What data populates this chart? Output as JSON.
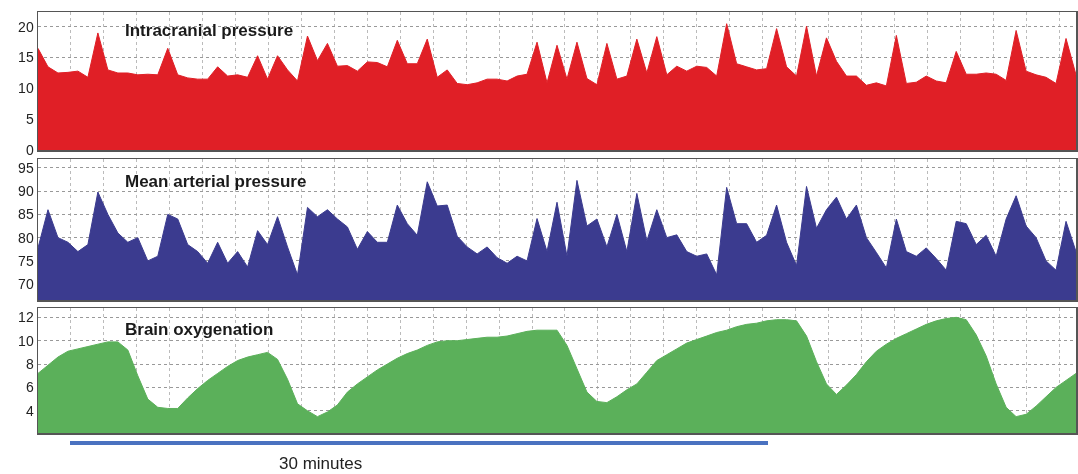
{
  "chart_data": [
    {
      "type": "area",
      "title": "Intracranial pressure",
      "categories": [
        null,
        null,
        null,
        null,
        null,
        null,
        null,
        null,
        null,
        null,
        null,
        null,
        null,
        null,
        null,
        null,
        null,
        null,
        null,
        null,
        null,
        null,
        null,
        null,
        null,
        null,
        null,
        null,
        null,
        null,
        null,
        null,
        null,
        null,
        null,
        null,
        null,
        null,
        null,
        null,
        null,
        null,
        null,
        null,
        null,
        null,
        null,
        null,
        null,
        null,
        null,
        null,
        null,
        null,
        null,
        null,
        null,
        null,
        null,
        null,
        null,
        null,
        null,
        null,
        null,
        null,
        null,
        null,
        null,
        null,
        null,
        null,
        null,
        null,
        null,
        null,
        null,
        null,
        null,
        null,
        null,
        null,
        null,
        null,
        null,
        null,
        null,
        null,
        null,
        null,
        null,
        null,
        null,
        null,
        null,
        null,
        null,
        null,
        null,
        null,
        null,
        null,
        null,
        null,
        null
      ],
      "series": [
        {
          "color": "#e01f26",
          "values": [
            16.5,
            13.5,
            12.5,
            12.6,
            12.8,
            11.8,
            19,
            13,
            12.5,
            12.5,
            12.2,
            12.3,
            12.2,
            16.5,
            12.2,
            11.7,
            11.5,
            11.5,
            13.5,
            12,
            12.2,
            11.8,
            15.3,
            11.5,
            15.3,
            13,
            11.2,
            18.5,
            14.5,
            17.3,
            13.6,
            13.7,
            12.8,
            14.3,
            14.2,
            13.5,
            17.8,
            14,
            14,
            18,
            11.8,
            13,
            10.8,
            10.6,
            10.9,
            11.5,
            11.5,
            11.2,
            12,
            12.3,
            17.5,
            10.9,
            17,
            11.5,
            17.5,
            11.6,
            10.6,
            17.3,
            11.5,
            12,
            18,
            12.5,
            18.4,
            12.2,
            13.6,
            12.8,
            13.6,
            13.4,
            12,
            20.5,
            14,
            13.5,
            13,
            13.2,
            19.7,
            13.5,
            12,
            20.1,
            12,
            18.2,
            14.4,
            12,
            12,
            10.5,
            10.9,
            10.4,
            18.6,
            10.8,
            11,
            12,
            11.2,
            10.9,
            16,
            12.3,
            12.3,
            12.5,
            12.3,
            11.3,
            19.4,
            12.8,
            12.2,
            11.8,
            10.8,
            18.1,
            12.2
          ]
        }
      ],
      "ylim": [
        0,
        22.4
      ],
      "yticks": [
        0,
        5,
        10,
        15,
        20
      ],
      "grid": true,
      "tick_labels": "y"
    },
    {
      "type": "area",
      "title": "Mean arterial pressure",
      "categories": [
        null,
        null,
        null,
        null,
        null,
        null,
        null,
        null,
        null,
        null,
        null,
        null,
        null,
        null,
        null,
        null,
        null,
        null,
        null,
        null,
        null,
        null,
        null,
        null,
        null,
        null,
        null,
        null,
        null,
        null,
        null,
        null,
        null,
        null,
        null,
        null,
        null,
        null,
        null,
        null,
        null,
        null,
        null,
        null,
        null,
        null,
        null,
        null,
        null,
        null,
        null,
        null,
        null,
        null,
        null,
        null,
        null,
        null,
        null,
        null,
        null,
        null,
        null,
        null,
        null,
        null,
        null,
        null,
        null,
        null,
        null,
        null,
        null,
        null,
        null,
        null,
        null,
        null,
        null,
        null,
        null,
        null,
        null,
        null,
        null,
        null,
        null,
        null,
        null,
        null,
        null,
        null,
        null,
        null,
        null,
        null,
        null,
        null,
        null,
        null,
        null,
        null,
        null,
        null,
        null
      ],
      "series": [
        {
          "color": "#3b3b8f",
          "values": [
            77.8,
            86,
            80,
            79,
            77,
            78.5,
            89.8,
            85,
            81,
            79,
            80,
            75,
            76,
            85,
            84,
            78.5,
            77,
            74.5,
            79,
            74.5,
            77,
            73.7,
            81.5,
            78.5,
            84.5,
            78,
            72,
            86.5,
            84.5,
            86,
            84,
            82.3,
            77.5,
            81.3,
            79,
            79,
            87,
            83,
            80.5,
            92,
            86.8,
            87,
            80.3,
            78,
            76.5,
            78,
            75.7,
            74.5,
            76,
            75,
            84.1,
            77,
            87.6,
            76,
            92.3,
            82.5,
            84,
            78,
            85,
            77,
            89.5,
            79.3,
            86,
            80,
            80.6,
            77,
            76,
            76.5,
            72,
            90.8,
            83,
            83,
            79,
            80.5,
            87,
            79,
            74,
            91,
            82,
            86,
            88.7,
            84,
            87,
            80,
            76.8,
            73.5,
            84,
            77,
            76,
            77.8,
            75.5,
            73,
            83.5,
            83,
            78.5,
            80.5,
            76,
            84,
            89,
            82.5,
            80,
            75,
            73,
            83.5,
            77
          ]
        }
      ],
      "ylim": [
        66.6,
        96.9
      ],
      "yticks": [
        70,
        75,
        80,
        85,
        90,
        95
      ],
      "grid": true,
      "tick_labels": "y"
    },
    {
      "type": "area",
      "title": "Brain oxygenation",
      "categories": [
        null,
        null,
        null,
        null,
        null,
        null,
        null,
        null,
        null,
        null,
        null,
        null,
        null,
        null,
        null,
        null,
        null,
        null,
        null,
        null,
        null,
        null,
        null,
        null,
        null,
        null,
        null,
        null,
        null,
        null,
        null,
        null,
        null,
        null,
        null,
        null,
        null,
        null,
        null,
        null,
        null,
        null,
        null,
        null,
        null,
        null,
        null,
        null,
        null,
        null,
        null,
        null,
        null,
        null,
        null,
        null,
        null,
        null,
        null,
        null,
        null,
        null,
        null,
        null,
        null,
        null,
        null,
        null,
        null,
        null,
        null,
        null,
        null,
        null,
        null,
        null,
        null,
        null,
        null,
        null,
        null,
        null,
        null,
        null,
        null,
        null,
        null,
        null,
        null,
        null,
        null,
        null,
        null,
        null,
        null,
        null,
        null,
        null,
        null,
        null,
        null,
        null,
        null,
        null,
        null
      ],
      "series": [
        {
          "color": "#5bb05a",
          "values": [
            7.2,
            7.9,
            8.6,
            9.1,
            9.3,
            9.5,
            9.7,
            9.9,
            9.9,
            9.2,
            7,
            5,
            4.3,
            4.2,
            4.2,
            5.1,
            5.9,
            6.6,
            7.2,
            7.8,
            8.3,
            8.6,
            8.8,
            9,
            8.4,
            6.7,
            4.6,
            4,
            3.5,
            3.9,
            4.5,
            5.6,
            6.3,
            6.9,
            7.5,
            8,
            8.5,
            8.9,
            9.2,
            9.6,
            9.9,
            10,
            10,
            10.1,
            10.2,
            10.3,
            10.3,
            10.4,
            10.6,
            10.8,
            10.9,
            10.9,
            10.9,
            9.6,
            7.6,
            5.6,
            4.8,
            4.7,
            5.2,
            5.8,
            6.3,
            7.3,
            8.3,
            8.8,
            9.3,
            9.8,
            10.1,
            10.4,
            10.7,
            10.9,
            11.2,
            11.4,
            11.5,
            11.7,
            11.8,
            11.8,
            11.7,
            10.4,
            8.2,
            6.3,
            5.4,
            6.2,
            7.1,
            8.2,
            9.1,
            9.7,
            10.2,
            10.6,
            11,
            11.4,
            11.7,
            11.9,
            12,
            11.8,
            10.5,
            8.7,
            6.3,
            4.3,
            3.5,
            3.7,
            4.4,
            5.2,
            6,
            6.6,
            7.2
          ]
        }
      ],
      "ylim": [
        2.1,
        12.8
      ],
      "yticks": [
        4,
        6,
        8,
        10,
        12
      ],
      "grid": true,
      "tick_labels": "y",
      "annotations": [
        "30 minutes"
      ]
    }
  ]
}
